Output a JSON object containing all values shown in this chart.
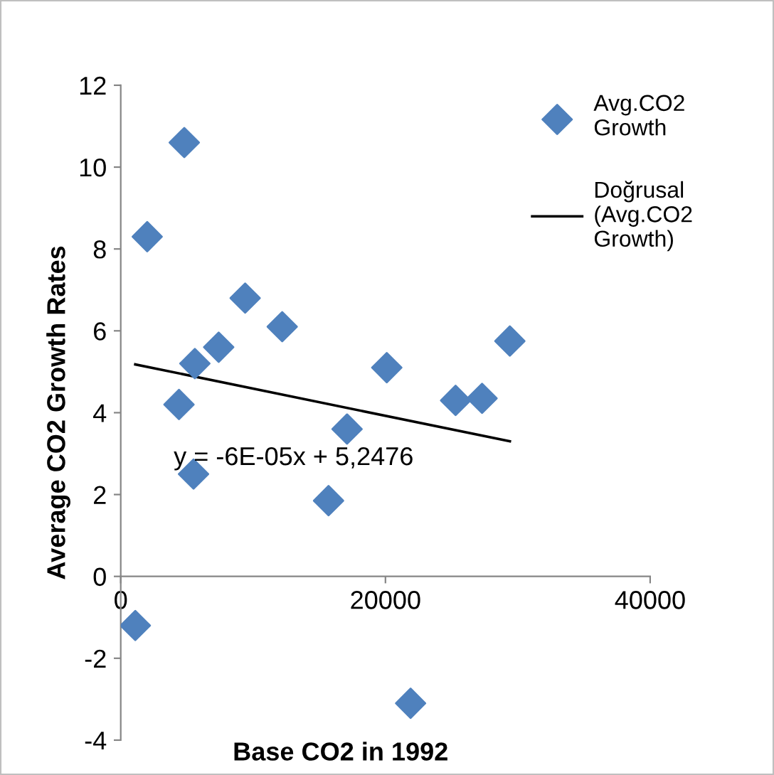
{
  "chart_data": {
    "type": "scatter",
    "xlabel": "Base CO2 in 1992",
    "ylabel": "Average CO2 Growth Rates",
    "xlim": [
      0,
      40000
    ],
    "xticks": [
      0,
      20000,
      40000
    ],
    "ylim": [
      -4,
      12
    ],
    "yticks": [
      -4,
      -2,
      0,
      2,
      4,
      6,
      8,
      10,
      12
    ],
    "grid": false,
    "legend": "top right",
    "marker": "diamond",
    "series": [
      {
        "name": "Avg.CO2 Growth",
        "color": "#4f81bd",
        "x": [
          1100,
          2000,
          4800,
          4400,
          5600,
          5500,
          7400,
          9400,
          12200,
          15700,
          17100,
          20100,
          21900,
          25300,
          27300,
          29400
        ],
        "values": [
          -1.2,
          8.3,
          10.6,
          4.2,
          5.2,
          2.5,
          5.6,
          6.8,
          6.1,
          1.85,
          3.6,
          5.1,
          -3.1,
          4.3,
          4.35,
          5.75
        ]
      },
      {
        "name": "Doğrusal (Avg.CO2 Growth)",
        "type": "line",
        "color": "#000000",
        "marker": "none",
        "x": [
          1100,
          29400
        ],
        "values": [
          5.18,
          3.3
        ]
      }
    ],
    "annotations": [
      "y = -6E-05x + 5,2476"
    ]
  }
}
